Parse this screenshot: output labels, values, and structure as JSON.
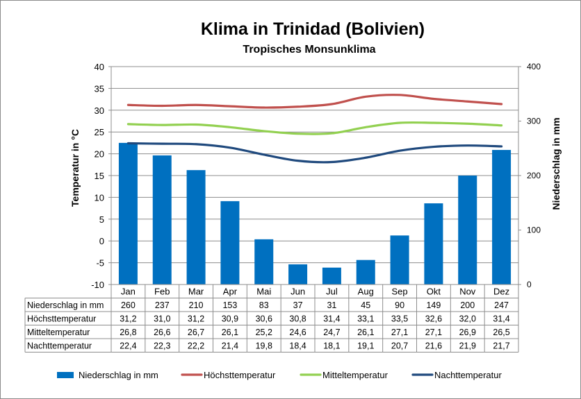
{
  "chart_data": {
    "type": "bar+line",
    "title": "Klima in Trinidad (Bolivien)",
    "subtitle": "Tropisches Monsunklima",
    "categories": [
      "Jan",
      "Feb",
      "Mar",
      "Apr",
      "Mai",
      "Jun",
      "Jul",
      "Aug",
      "Sep",
      "Okt",
      "Nov",
      "Dez"
    ],
    "y_left": {
      "label": "Temperatur in °C",
      "range": [
        -10,
        40
      ],
      "ticks": [
        -10,
        -5,
        0,
        5,
        10,
        15,
        20,
        25,
        30,
        35,
        40
      ]
    },
    "y_right": {
      "label": "Niederschlag in mm",
      "range": [
        0,
        400
      ],
      "ticks": [
        0,
        100,
        200,
        300,
        400
      ]
    },
    "grid": true,
    "legend_position": "bottom",
    "series": [
      {
        "name": "Niederschlag in mm",
        "type": "bar",
        "axis": "right",
        "color": "#0070C0",
        "values": [
          260,
          237,
          210,
          153,
          83,
          37,
          31,
          45,
          90,
          149,
          200,
          247
        ],
        "labels": [
          "260",
          "237",
          "210",
          "153",
          "83",
          "37",
          "31",
          "45",
          "90",
          "149",
          "200",
          "247"
        ]
      },
      {
        "name": "Höchsttemperatur",
        "type": "line",
        "axis": "left",
        "color": "#C0504D",
        "values": [
          31.2,
          31.0,
          31.2,
          30.9,
          30.6,
          30.8,
          31.4,
          33.1,
          33.5,
          32.6,
          32.0,
          31.4
        ],
        "labels": [
          "31,2",
          "31,0",
          "31,2",
          "30,9",
          "30,6",
          "30,8",
          "31,4",
          "33,1",
          "33,5",
          "32,6",
          "32,0",
          "31,4"
        ]
      },
      {
        "name": "Mitteltemperatur",
        "type": "line",
        "axis": "left",
        "color": "#92D050",
        "values": [
          26.8,
          26.6,
          26.7,
          26.1,
          25.2,
          24.6,
          24.7,
          26.1,
          27.1,
          27.1,
          26.9,
          26.5
        ],
        "labels": [
          "26,8",
          "26,6",
          "26,7",
          "26,1",
          "25,2",
          "24,6",
          "24,7",
          "26,1",
          "27,1",
          "27,1",
          "26,9",
          "26,5"
        ]
      },
      {
        "name": "Nachttemperatur",
        "type": "line",
        "axis": "left",
        "color": "#1F497D",
        "values": [
          22.4,
          22.3,
          22.2,
          21.4,
          19.8,
          18.4,
          18.1,
          19.1,
          20.7,
          21.6,
          21.9,
          21.7
        ],
        "labels": [
          "22,4",
          "22,3",
          "22,2",
          "21,4",
          "19,8",
          "18,4",
          "18,1",
          "19,1",
          "20,7",
          "21,6",
          "21,9",
          "21,7"
        ]
      }
    ]
  }
}
